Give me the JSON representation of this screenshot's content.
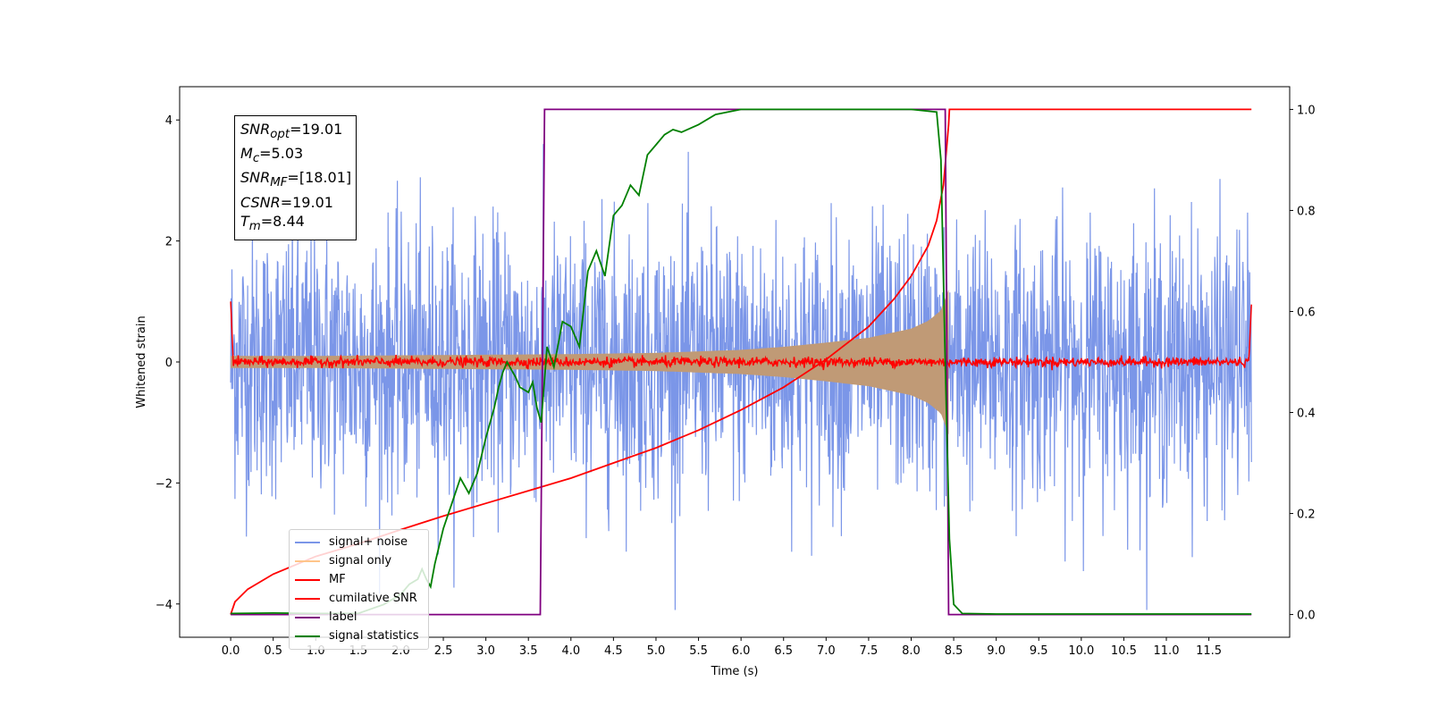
{
  "chart_data": {
    "type": "line",
    "title": "",
    "xlabel": "Time (s)",
    "ylabel": "Whitened strain",
    "ylabel_right": "",
    "xlim": [
      -0.6,
      12.45
    ],
    "ylim": [
      -4.55,
      4.55
    ],
    "ylim_right": [
      -0.045,
      1.045
    ],
    "x_ticks": [
      "0.0",
      "0.5",
      "1.0",
      "1.5",
      "2.0",
      "2.5",
      "3.0",
      "3.5",
      "4.0",
      "4.5",
      "5.0",
      "5.5",
      "6.0",
      "6.5",
      "7.0",
      "7.5",
      "8.0",
      "8.5",
      "9.0",
      "9.5",
      "10.0",
      "10.5",
      "11.0",
      "11.5"
    ],
    "y_ticks_left": [
      "4",
      "2",
      "0",
      "−2",
      "−4"
    ],
    "y_ticks_right": [
      "1.0",
      "0.8",
      "0.6",
      "0.4",
      "0.2",
      "0.0"
    ],
    "grid": false,
    "legend_placement": "lower-left",
    "annotation": {
      "snr_opt": {
        "symbol": "SNR",
        "sub": "opt",
        "value": "=19.01"
      },
      "mc": {
        "symbol": "M",
        "sub": "c",
        "value": "=5.03"
      },
      "snr_mf": {
        "symbol": "SNR",
        "sub": "MF",
        "value": "=[18.01]"
      },
      "csnr": {
        "symbol": "CSNR",
        "sub": "",
        "value": "=19.01"
      },
      "tm": {
        "symbol": "T",
        "sub": "m",
        "value": "=8.44"
      }
    },
    "series": [
      {
        "name": "signal+ noise",
        "axis": "left",
        "color": "#7b96e8",
        "kind": "noise",
        "x_range": [
          0,
          12
        ],
        "amplitude_std": 1.1
      },
      {
        "name": "signal only",
        "axis": "left",
        "color": "#c09a76",
        "kind": "chirp-envelope",
        "envelope": [
          [
            0,
            0.1
          ],
          [
            1,
            0.1
          ],
          [
            2,
            0.11
          ],
          [
            3,
            0.12
          ],
          [
            4,
            0.13
          ],
          [
            5,
            0.15
          ],
          [
            6,
            0.2
          ],
          [
            6.5,
            0.25
          ],
          [
            7,
            0.32
          ],
          [
            7.5,
            0.4
          ],
          [
            8,
            0.55
          ],
          [
            8.2,
            0.68
          ],
          [
            8.35,
            0.85
          ],
          [
            8.44,
            1.2
          ],
          [
            8.45,
            0
          ]
        ]
      },
      {
        "name": "MF",
        "axis": "left",
        "color": "#ff0000",
        "kind": "noise",
        "x_range": [
          0,
          12
        ],
        "amplitude_std": 0.04,
        "edge_peak": 1.0
      },
      {
        "name": "cumilative SNR",
        "axis": "right",
        "color": "#ff0000",
        "points": [
          [
            0,
            0
          ],
          [
            0.05,
            0.025
          ],
          [
            0.2,
            0.05
          ],
          [
            0.5,
            0.08
          ],
          [
            1,
            0.115
          ],
          [
            1.5,
            0.14
          ],
          [
            2,
            0.168
          ],
          [
            2.5,
            0.195
          ],
          [
            3,
            0.22
          ],
          [
            3.5,
            0.245
          ],
          [
            4,
            0.27
          ],
          [
            4.5,
            0.3
          ],
          [
            5,
            0.33
          ],
          [
            5.5,
            0.365
          ],
          [
            6,
            0.405
          ],
          [
            6.5,
            0.45
          ],
          [
            7,
            0.505
          ],
          [
            7.5,
            0.57
          ],
          [
            7.8,
            0.625
          ],
          [
            8,
            0.67
          ],
          [
            8.2,
            0.73
          ],
          [
            8.3,
            0.78
          ],
          [
            8.38,
            0.85
          ],
          [
            8.44,
            0.97
          ],
          [
            8.45,
            1.0
          ],
          [
            12,
            1.0
          ]
        ]
      },
      {
        "name": "label",
        "axis": "right",
        "color": "#800080",
        "points": [
          [
            0,
            0
          ],
          [
            3.64,
            0
          ],
          [
            3.69,
            1
          ],
          [
            8.4,
            1
          ],
          [
            8.44,
            0
          ],
          [
            12,
            0
          ]
        ]
      },
      {
        "name": "signal statistics",
        "axis": "right",
        "color": "#008000",
        "points": [
          [
            0,
            0.002
          ],
          [
            0.5,
            0.003
          ],
          [
            1,
            0.002
          ],
          [
            1.5,
            0.002
          ],
          [
            1.8,
            0.02
          ],
          [
            2,
            0.04
          ],
          [
            2.1,
            0.06
          ],
          [
            2.2,
            0.07
          ],
          [
            2.25,
            0.09
          ],
          [
            2.3,
            0.07
          ],
          [
            2.35,
            0.055
          ],
          [
            2.4,
            0.1
          ],
          [
            2.5,
            0.17
          ],
          [
            2.6,
            0.22
          ],
          [
            2.7,
            0.27
          ],
          [
            2.8,
            0.24
          ],
          [
            2.9,
            0.28
          ],
          [
            3,
            0.35
          ],
          [
            3.1,
            0.41
          ],
          [
            3.15,
            0.45
          ],
          [
            3.2,
            0.48
          ],
          [
            3.25,
            0.5
          ],
          [
            3.35,
            0.47
          ],
          [
            3.4,
            0.45
          ],
          [
            3.5,
            0.44
          ],
          [
            3.55,
            0.46
          ],
          [
            3.6,
            0.41
          ],
          [
            3.65,
            0.38
          ],
          [
            3.72,
            0.53
          ],
          [
            3.8,
            0.49
          ],
          [
            3.9,
            0.58
          ],
          [
            4,
            0.57
          ],
          [
            4.1,
            0.53
          ],
          [
            4.2,
            0.68
          ],
          [
            4.3,
            0.72
          ],
          [
            4.4,
            0.67
          ],
          [
            4.5,
            0.79
          ],
          [
            4.6,
            0.81
          ],
          [
            4.7,
            0.85
          ],
          [
            4.8,
            0.83
          ],
          [
            4.9,
            0.91
          ],
          [
            5,
            0.93
          ],
          [
            5.1,
            0.95
          ],
          [
            5.2,
            0.96
          ],
          [
            5.3,
            0.955
          ],
          [
            5.5,
            0.97
          ],
          [
            5.7,
            0.99
          ],
          [
            6,
            1.0
          ],
          [
            7,
            1.0
          ],
          [
            8,
            1.0
          ],
          [
            8.3,
            0.995
          ],
          [
            8.35,
            0.9
          ],
          [
            8.4,
            0.5
          ],
          [
            8.45,
            0.15
          ],
          [
            8.5,
            0.02
          ],
          [
            8.6,
            0.002
          ],
          [
            9,
            0.001
          ],
          [
            12,
            0.001
          ]
        ]
      }
    ]
  }
}
